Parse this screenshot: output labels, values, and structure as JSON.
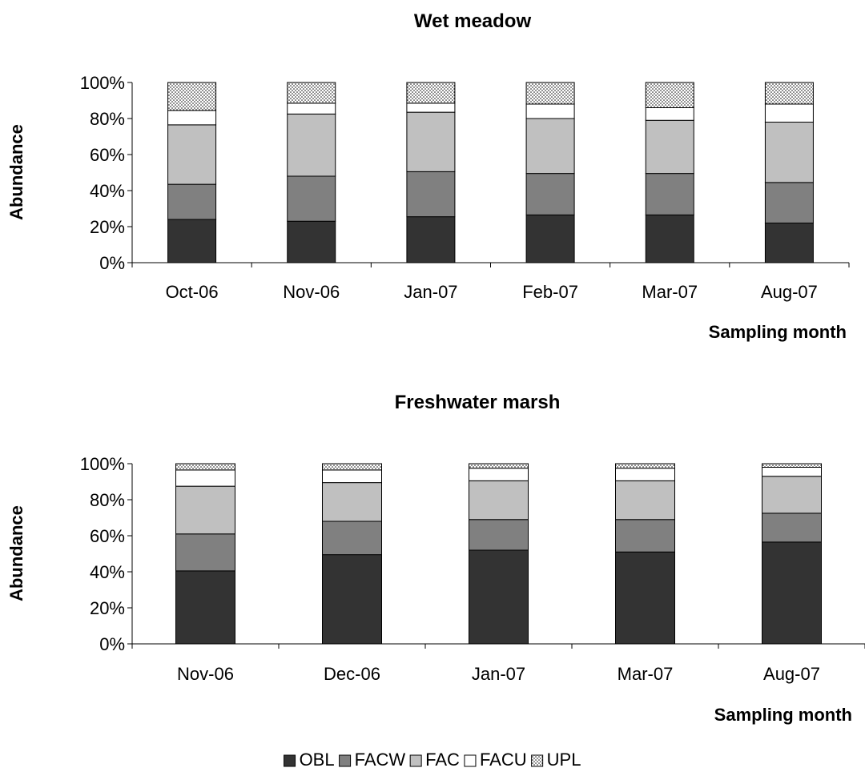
{
  "legend": {
    "items": [
      {
        "label": "OBL",
        "fill": "#333333",
        "pattern": "solid"
      },
      {
        "label": "FACW",
        "fill": "#808080",
        "pattern": "solid"
      },
      {
        "label": "FAC",
        "fill": "#c0c0c0",
        "pattern": "solid"
      },
      {
        "label": "FACU",
        "fill": "#ffffff",
        "pattern": "solid"
      },
      {
        "label": "UPL",
        "fill": "#ffffff",
        "pattern": "dots"
      }
    ]
  },
  "chart_data": [
    {
      "type": "bar",
      "stacked": true,
      "title": "Wet meadow",
      "xlabel": "Sampling month",
      "ylabel": "Abundance",
      "ylim": [
        0,
        100
      ],
      "yticks": [
        "0%",
        "20%",
        "40%",
        "60%",
        "80%",
        "100%"
      ],
      "categories": [
        "Oct-06",
        "Nov-06",
        "Jan-07",
        "Feb-07",
        "Mar-07",
        "Aug-07"
      ],
      "series": [
        {
          "name": "OBL",
          "values": [
            24,
            23,
            25.5,
            26.5,
            26.5,
            22
          ]
        },
        {
          "name": "FACW",
          "values": [
            19.5,
            25,
            25,
            23,
            23,
            22.5
          ]
        },
        {
          "name": "FAC",
          "values": [
            33,
            34.5,
            33,
            30.5,
            29.5,
            33.5
          ]
        },
        {
          "name": "FACU",
          "values": [
            8,
            6,
            5,
            8,
            7,
            10
          ]
        },
        {
          "name": "UPL",
          "values": [
            15.5,
            11.5,
            11.5,
            12,
            14,
            12
          ]
        }
      ]
    },
    {
      "type": "bar",
      "stacked": true,
      "title": "Freshwater marsh",
      "xlabel": "Sampling month",
      "ylabel": "Abundance",
      "ylim": [
        0,
        100
      ],
      "yticks": [
        "0%",
        "20%",
        "40%",
        "60%",
        "80%",
        "100%"
      ],
      "categories": [
        "Nov-06",
        "Dec-06",
        "Jan-07",
        "Mar-07",
        "Aug-07"
      ],
      "series": [
        {
          "name": "OBL",
          "values": [
            40.5,
            49.5,
            52,
            51,
            56.5
          ]
        },
        {
          "name": "FACW",
          "values": [
            20.5,
            18.5,
            17,
            18,
            16
          ]
        },
        {
          "name": "FAC",
          "values": [
            26.5,
            21.5,
            21.5,
            21.5,
            20.5
          ]
        },
        {
          "name": "FACU",
          "values": [
            9,
            7,
            7,
            7,
            5
          ]
        },
        {
          "name": "UPL",
          "values": [
            3.5,
            3.5,
            2.5,
            2.5,
            2
          ]
        }
      ]
    }
  ]
}
